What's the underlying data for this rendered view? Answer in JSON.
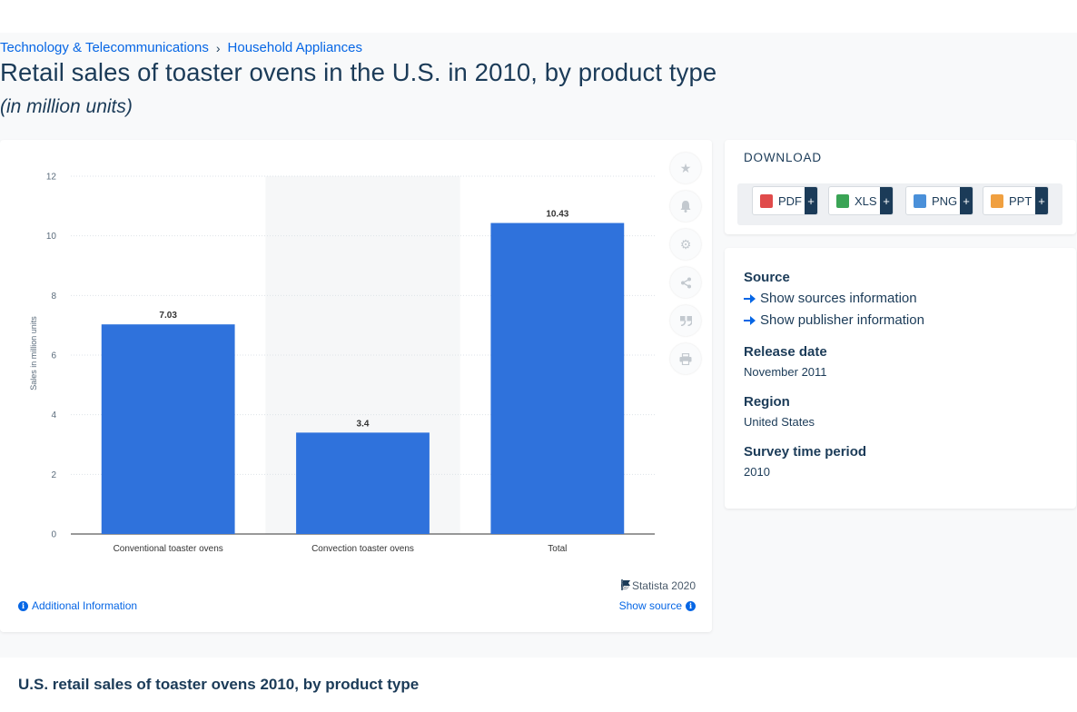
{
  "breadcrumb": [
    {
      "label": "Technology & Telecommunications"
    },
    {
      "label": "Household Appliances"
    }
  ],
  "breadcrumb_separator": "›",
  "page_title": "Retail sales of toaster ovens in the U.S. in 2010, by product type",
  "page_subtitle": "(in million units)",
  "chart_data": {
    "type": "bar",
    "categories": [
      "Conventional toaster ovens",
      "Convection toaster ovens",
      "Total"
    ],
    "values": [
      7.03,
      3.4,
      10.43
    ],
    "value_labels": [
      "7.03",
      "3.4",
      "10.43"
    ],
    "title": "",
    "xlabel": "",
    "ylabel": "Sales in million units",
    "ylim": [
      0,
      12
    ],
    "yticks": [
      0,
      2,
      4,
      6,
      8,
      10,
      12
    ],
    "grid": true,
    "highlighted_category": 1,
    "bar_color": "#2f72dc",
    "highlight_color": "#f6f7f8"
  },
  "chart_footer": {
    "copyright": "© Statista 2020",
    "additional_info": "Additional Information",
    "show_source": "Show source"
  },
  "tool_icons": [
    "star-icon",
    "bell-icon",
    "gear-icon",
    "share-icon",
    "quote-icon",
    "print-icon"
  ],
  "download": {
    "heading": "DOWNLOAD",
    "buttons": [
      {
        "label": "PDF",
        "color": "#e04b4b"
      },
      {
        "label": "XLS",
        "color": "#3aa455"
      },
      {
        "label": "PNG",
        "color": "#4a90d9"
      },
      {
        "label": "PPT",
        "color": "#f0a040"
      }
    ],
    "plus": "+"
  },
  "source_panel": {
    "source_heading": "Source",
    "show_sources": "Show sources information",
    "show_publisher": "Show publisher information",
    "release_date_heading": "Release date",
    "release_date": "November 2011",
    "region_heading": "Region",
    "region": "United States",
    "survey_heading": "Survey time period",
    "survey": "2010"
  },
  "bottom_title": "U.S. retail sales of toaster ovens 2010, by product type"
}
